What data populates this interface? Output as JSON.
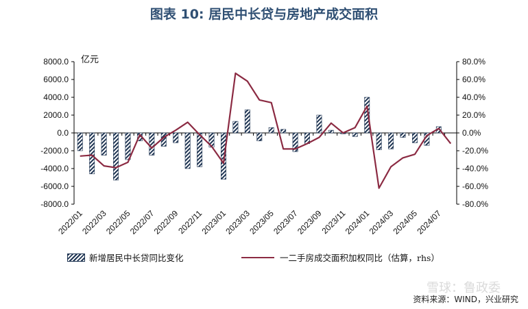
{
  "title": "图表 10: 居民中长贷与房地产成交面积",
  "source": "资料来源：WIND，兴业研究",
  "watermark": "雪球：鲁政委",
  "chart_data": {
    "type": "bar",
    "unit_label": "亿元",
    "categories": [
      "2022/01",
      "2022/02",
      "2022/03",
      "2022/04",
      "2022/05",
      "2022/06",
      "2022/07",
      "2022/08",
      "2022/09",
      "2022/10",
      "2022/11",
      "2022/12",
      "2023/01",
      "2023/02",
      "2023/03",
      "2023/04",
      "2023/05",
      "2023/06",
      "2023/07",
      "2023/08",
      "2023/09",
      "2023/10",
      "2023/11",
      "2023/12",
      "2024/01",
      "2024/02",
      "2024/03",
      "2024/04",
      "2024/05",
      "2024/06",
      "2024/07",
      "2024/08"
    ],
    "x_tick_labels": [
      "2022/01",
      "2022/03",
      "2022/05",
      "2022/07",
      "2022/09",
      "2022/11",
      "2023/01",
      "2023/03",
      "2023/05",
      "2023/07",
      "2023/09",
      "2023/11",
      "2024/01",
      "2024/03",
      "2024/05",
      "2024/07"
    ],
    "y_left": {
      "ticks": [
        "8000.0",
        "6000.0",
        "4000.0",
        "2000.0",
        "0.0",
        "-2000.0",
        "-4000.0",
        "-6000.0",
        "-8000.0"
      ],
      "ylim": [
        -8000,
        8000
      ]
    },
    "y_right": {
      "ticks": [
        "80.0%",
        "60.0%",
        "40.0%",
        "20.0%",
        "0.0%",
        "-20.0%",
        "-40.0%",
        "-60.0%",
        "-80.0%"
      ],
      "ylim": [
        -80,
        80
      ]
    },
    "series": [
      {
        "name": "新增居民中长贷同比变化",
        "kind": "bar",
        "axis": "left",
        "values": [
          -2000,
          -4600,
          -2500,
          -5300,
          -3000,
          -900,
          -2500,
          -1500,
          -1100,
          -4000,
          -3800,
          -1600,
          -5200,
          1300,
          2600,
          -900,
          600,
          400,
          -2100,
          -1200,
          2000,
          300,
          -100,
          -400,
          4000,
          -1900,
          -1800,
          -500,
          -1100,
          -1400,
          700,
          null
        ]
      },
      {
        "name": "一二手房成交面积加权同比（估算，rhs）",
        "kind": "line",
        "axis": "right",
        "color": "#8b2a42",
        "values": [
          -26,
          -25,
          -37,
          -39,
          -33,
          -2,
          -17,
          -5,
          3,
          12,
          -2,
          -15,
          -34,
          67,
          58,
          37,
          34,
          -18,
          -18,
          -12,
          -5,
          11,
          0,
          6,
          30,
          -62,
          -38,
          -28,
          -24,
          -3,
          5,
          -12
        ]
      }
    ],
    "grid": false
  }
}
